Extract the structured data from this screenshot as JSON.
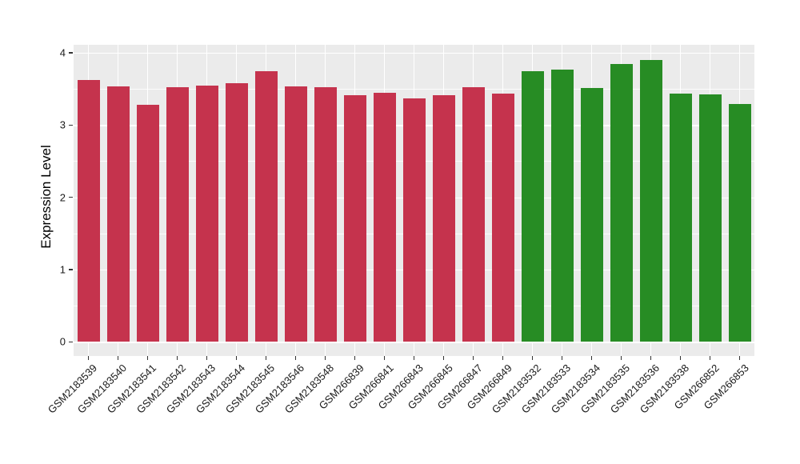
{
  "chart_data": {
    "type": "bar",
    "title": "",
    "xlabel": "",
    "ylabel": "Expression Level",
    "ylim": [
      0,
      4.11
    ],
    "yticks": [
      0,
      1,
      2,
      3,
      4
    ],
    "ytick_labels": [
      "0",
      "1",
      "2",
      "3",
      "4"
    ],
    "grid": true,
    "legend": "none",
    "panel_background": "#EBEBEB",
    "grid_color": "#FFFFFF",
    "tick_color": "#333333",
    "tick_label_color": "#1a1a1a",
    "group_colors": {
      "red": "#C5334D",
      "green": "#278C24"
    },
    "bars": [
      {
        "label": "GSM2183539",
        "value": 3.62,
        "group": "red"
      },
      {
        "label": "GSM2183540",
        "value": 3.54,
        "group": "red"
      },
      {
        "label": "GSM2183541",
        "value": 3.28,
        "group": "red"
      },
      {
        "label": "GSM2183542",
        "value": 3.52,
        "group": "red"
      },
      {
        "label": "GSM2183543",
        "value": 3.55,
        "group": "red"
      },
      {
        "label": "GSM2183544",
        "value": 3.58,
        "group": "red"
      },
      {
        "label": "GSM2183545",
        "value": 3.75,
        "group": "red"
      },
      {
        "label": "GSM2183546",
        "value": 3.53,
        "group": "red"
      },
      {
        "label": "GSM2183548",
        "value": 3.52,
        "group": "red"
      },
      {
        "label": "GSM266839",
        "value": 3.41,
        "group": "red"
      },
      {
        "label": "GSM266841",
        "value": 3.45,
        "group": "red"
      },
      {
        "label": "GSM266843",
        "value": 3.37,
        "group": "red"
      },
      {
        "label": "GSM266845",
        "value": 3.41,
        "group": "red"
      },
      {
        "label": "GSM266847",
        "value": 3.52,
        "group": "red"
      },
      {
        "label": "GSM266849",
        "value": 3.44,
        "group": "red"
      },
      {
        "label": "GSM2183532",
        "value": 3.74,
        "group": "green"
      },
      {
        "label": "GSM2183533",
        "value": 3.77,
        "group": "green"
      },
      {
        "label": "GSM2183534",
        "value": 3.51,
        "group": "green"
      },
      {
        "label": "GSM2183535",
        "value": 3.84,
        "group": "green"
      },
      {
        "label": "GSM2183536",
        "value": 3.9,
        "group": "green"
      },
      {
        "label": "GSM2183538",
        "value": 3.43,
        "group": "green"
      },
      {
        "label": "GSM266852",
        "value": 3.42,
        "group": "green"
      },
      {
        "label": "GSM266853",
        "value": 3.29,
        "group": "green"
      }
    ]
  }
}
